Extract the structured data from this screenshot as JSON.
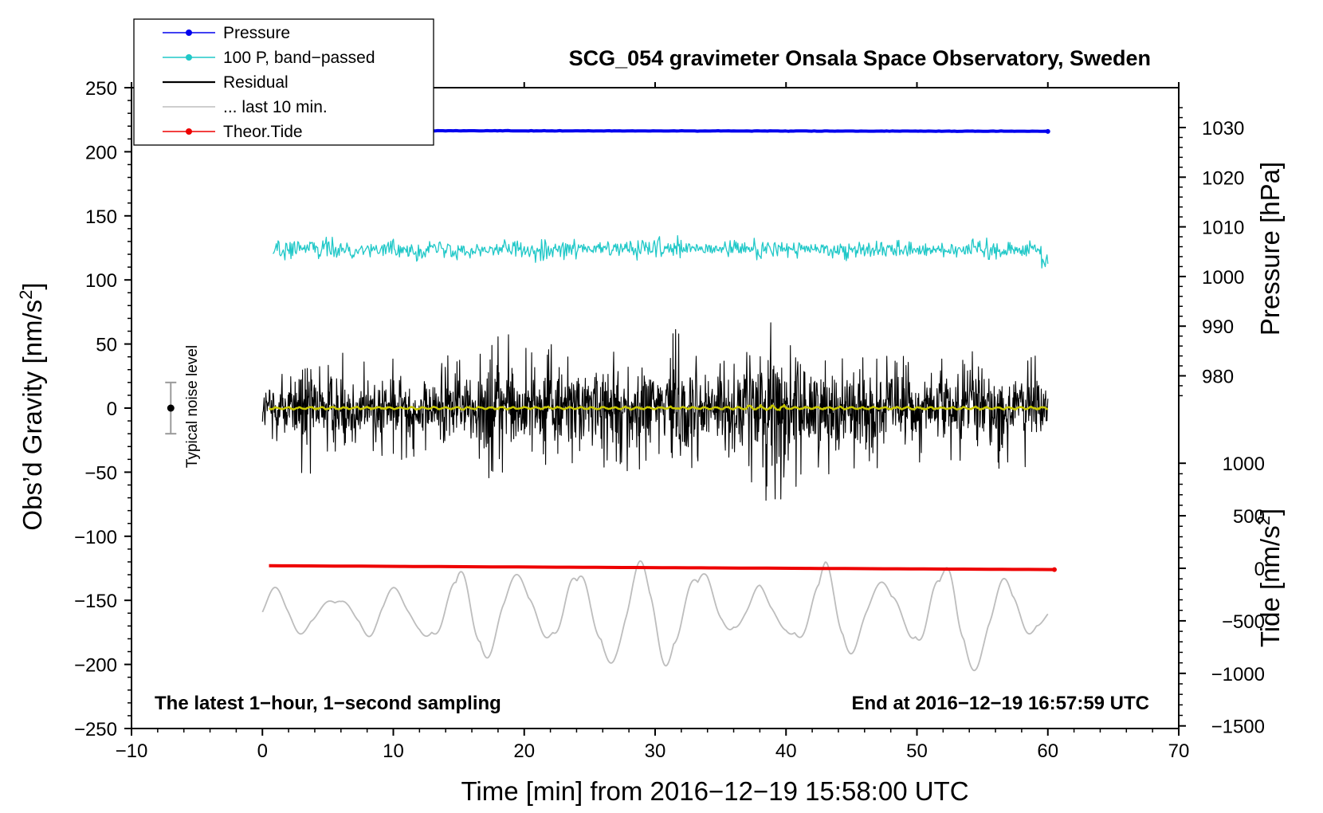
{
  "chart_data": {
    "type": "line",
    "title": "SCG_054 gravimeter Onsala Space Observatory, Sweden",
    "xlabel": "Time [min] from 2016−12−19 15:58:00 UTC",
    "ylabel": "Obs’d Gravity [nm/s²]",
    "ylabel_parts": {
      "main": "Obs’d Gravity [nm/s",
      "sup": "2",
      "close": "]"
    },
    "right_axis_pressure_label": "Pressure [hPa]",
    "right_axis_tide_label": "Tide [nm/s²]",
    "right_axis_tide_parts": {
      "main": "Tide [nm/s",
      "sup": "2",
      "close": "]"
    },
    "xlim": [
      -10,
      70
    ],
    "ylim": [
      -250,
      250
    ],
    "x_ticks": [
      -10,
      0,
      10,
      20,
      30,
      40,
      50,
      60,
      70
    ],
    "x_tick_labels": [
      "−10",
      "0",
      "10",
      "20",
      "30",
      "40",
      "50",
      "60",
      "70"
    ],
    "y_ticks": [
      -250,
      -200,
      -150,
      -100,
      -50,
      0,
      50,
      100,
      150,
      200,
      250
    ],
    "y_tick_labels": [
      "−250",
      "−200",
      "−150",
      "−100",
      "−50",
      "0",
      "50",
      "100",
      "150",
      "200",
      "250"
    ],
    "pressure_axis": {
      "ticks": [
        980,
        990,
        1000,
        1010,
        1020,
        1030
      ],
      "tick_labels": [
        "980",
        "990",
        "1000",
        "1010",
        "1020",
        "1030"
      ],
      "value_at_gravity_0": 973.5,
      "hpa_per_nm_s2": 0.2581
    },
    "tide_axis": {
      "ticks": [
        -1500,
        -1000,
        -500,
        0,
        500,
        1000
      ],
      "tick_labels": [
        "−1500",
        "−1000",
        "−500",
        "0",
        "500",
        "1000"
      ],
      "gravity_at_tide_0": -125,
      "tide_per_nm_s2": 12.2
    },
    "legend": {
      "position": "top-left",
      "entries": [
        {
          "label": "Pressure",
          "color": "#0000ee",
          "marker": true
        },
        {
          "label": "100 P, band−passed",
          "color": "#20c8c8",
          "marker": true
        },
        {
          "label": "Residual",
          "color": "#000000",
          "marker": false
        },
        {
          "label": "... last 10 min.",
          "color": "#bdbdbd",
          "marker": false
        },
        {
          "label": "Theor.Tide",
          "color": "#ee0000",
          "marker": true
        }
      ]
    },
    "annotations": {
      "left_note": "The latest 1−hour, 1−second sampling",
      "right_note": "End at 2016−12−19 16:57:59 UTC",
      "noise_label": "Typical noise level",
      "noise_level": {
        "x": -7,
        "center": 0,
        "half_range": 20
      }
    },
    "series": [
      {
        "name": "Pressure",
        "color": "#0000ee",
        "x_range": [
          0.5,
          60
        ],
        "value_start": 216.5,
        "value_end": 216.0,
        "noise": 0.4,
        "width": 4
      },
      {
        "name": "100 P, band−passed",
        "color": "#20c8c8",
        "x_range": [
          0.8,
          60
        ],
        "center": 124,
        "amplitude": 8,
        "width": 1.3
      },
      {
        "name": "Residual",
        "color": "#000000",
        "x_range": [
          0,
          60
        ],
        "center": 0,
        "width": 1.1,
        "envelope": [
          [
            0,
            25
          ],
          [
            2,
            35
          ],
          [
            3.5,
            55
          ],
          [
            5,
            35
          ],
          [
            6.5,
            45
          ],
          [
            8,
            35
          ],
          [
            10,
            40
          ],
          [
            12,
            35
          ],
          [
            14,
            45
          ],
          [
            16,
            40
          ],
          [
            18,
            65
          ],
          [
            19.5,
            55
          ],
          [
            21,
            45
          ],
          [
            23,
            50
          ],
          [
            25,
            45
          ],
          [
            27,
            50
          ],
          [
            29,
            45
          ],
          [
            31,
            70
          ],
          [
            33,
            50
          ],
          [
            35,
            50
          ],
          [
            36.5,
            55
          ],
          [
            38,
            85
          ],
          [
            40,
            70
          ],
          [
            41.5,
            50
          ],
          [
            43,
            60
          ],
          [
            45,
            50
          ],
          [
            47,
            45
          ],
          [
            49,
            40
          ],
          [
            51,
            45
          ],
          [
            52.5,
            40
          ],
          [
            54,
            45
          ],
          [
            56,
            50
          ],
          [
            58,
            45
          ],
          [
            60,
            35
          ]
        ]
      },
      {
        "name": "Residual smoothed",
        "color": "#c8c800",
        "x_range": [
          0.5,
          60
        ],
        "center": 0,
        "amplitude": 1.2,
        "width": 2.5
      },
      {
        "name": "... last 10 min.",
        "color": "#bdbdbd",
        "x_range": [
          0,
          60
        ],
        "center": -160,
        "width": 1.8,
        "envelope": [
          [
            0,
            20
          ],
          [
            3,
            15
          ],
          [
            6,
            10
          ],
          [
            9,
            20
          ],
          [
            12,
            15
          ],
          [
            15,
            35
          ],
          [
            18,
            35
          ],
          [
            20,
            25
          ],
          [
            22,
            20
          ],
          [
            25,
            40
          ],
          [
            27,
            35
          ],
          [
            30,
            40
          ],
          [
            32,
            40
          ],
          [
            34,
            30
          ],
          [
            36,
            10
          ],
          [
            38,
            20
          ],
          [
            40,
            15
          ],
          [
            43,
            40
          ],
          [
            46,
            25
          ],
          [
            49,
            20
          ],
          [
            52,
            35
          ],
          [
            53,
            55
          ],
          [
            55,
            35
          ],
          [
            58,
            20
          ],
          [
            60,
            10
          ]
        ]
      },
      {
        "name": "Theor.Tide",
        "color": "#ee0000",
        "x_range": [
          0.5,
          60.5
        ],
        "value_start": -123,
        "value_end": -126,
        "width": 4
      }
    ]
  }
}
